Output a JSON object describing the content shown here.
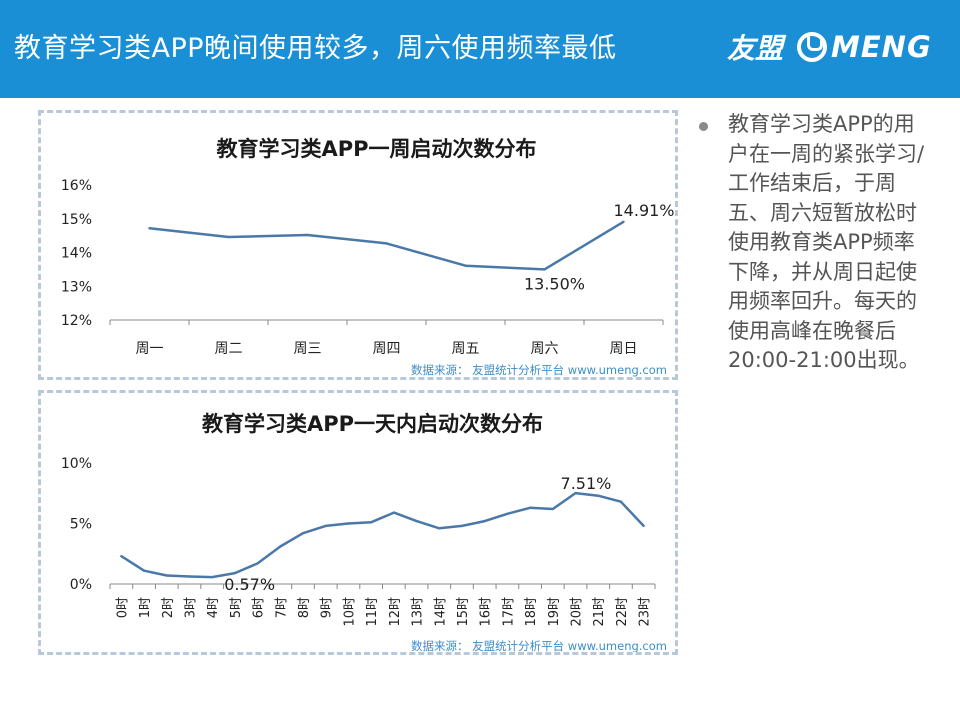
{
  "header": {
    "title": "教育学习类APP晚间使用较多，周六使用频率最低",
    "logo_cn": "友盟",
    "logo_en": "MENG"
  },
  "note": {
    "text": "教育学习类APP的用户在一周的紧张学习/工作结束后，于周五、周六短暂放松时使用教育类APP频率下降，并从周日起使用频率回升。每天的使用高峰在晚餐后20:00-21:00出现。"
  },
  "colors": {
    "header_bg": "#1a8fd6",
    "line": "#4a78a8",
    "source": "#3d8ec8"
  },
  "chart_data": [
    {
      "type": "line",
      "title": "教育学习类APP一周启动次数分布",
      "categories": [
        "周一",
        "周二",
        "周三",
        "周四",
        "周五",
        "周六",
        "周日"
      ],
      "values": [
        14.72,
        14.46,
        14.52,
        14.27,
        13.61,
        13.5,
        14.91
      ],
      "ylim": [
        12,
        16
      ],
      "yticks": [
        "12%",
        "13%",
        "14%",
        "15%",
        "16%"
      ],
      "ytick_values": [
        12,
        13,
        14,
        15,
        16
      ],
      "annotations": [
        {
          "index": 5,
          "text": "13.50%"
        },
        {
          "index": 6,
          "text": "14.91%"
        }
      ],
      "source": "数据来源： 友盟统计分析平台 www.umeng.com"
    },
    {
      "type": "line",
      "title": "教育学习类APP一天内启动次数分布",
      "categories": [
        "0时",
        "1时",
        "2时",
        "3时",
        "4时",
        "5时",
        "6时",
        "7时",
        "8时",
        "9时",
        "10时",
        "11时",
        "12时",
        "13时",
        "14时",
        "15时",
        "16时",
        "17时",
        "18时",
        "19时",
        "20时",
        "21时",
        "22时",
        "23时"
      ],
      "values": [
        2.3,
        1.1,
        0.7,
        0.62,
        0.57,
        0.9,
        1.7,
        3.1,
        4.2,
        4.8,
        5.0,
        5.1,
        5.9,
        5.2,
        4.6,
        4.8,
        5.2,
        5.8,
        6.3,
        6.2,
        7.51,
        7.3,
        6.8,
        4.8
      ],
      "ylim": [
        0,
        10
      ],
      "yticks": [
        "0%",
        "5%",
        "10%"
      ],
      "ytick_values": [
        0,
        5,
        10
      ],
      "annotations": [
        {
          "index": 4,
          "text": "0.57%"
        },
        {
          "index": 20,
          "text": "7.51%"
        }
      ],
      "source": "数据来源： 友盟统计分析平台 www.umeng.com"
    }
  ]
}
